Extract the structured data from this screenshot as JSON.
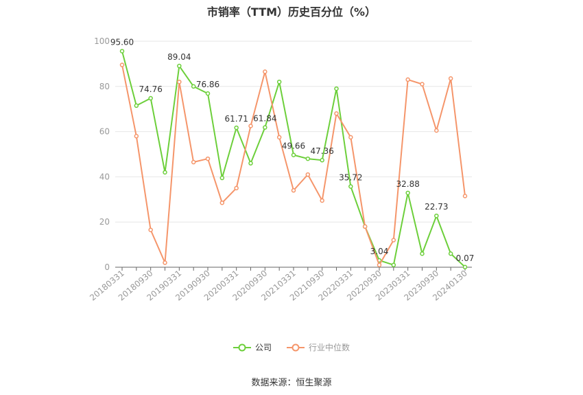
{
  "chart_data": {
    "type": "line",
    "title": "市销率（TTM）历史百分位（%）",
    "source_note": "数据来源：恒生聚源",
    "ylim": [
      0,
      100
    ],
    "yticks": [
      0,
      20,
      40,
      60,
      80,
      100
    ],
    "xtick_labels": [
      "20180331",
      "20180930",
      "20190331",
      "20190930",
      "20200331",
      "20200930",
      "20210331",
      "20210930",
      "20220331",
      "20220930",
      "20230331",
      "20230930",
      "20240130"
    ],
    "x": [
      "20180331",
      "20180630",
      "20180930",
      "20181231",
      "20190331",
      "20190630",
      "20190930",
      "20191231",
      "20200331",
      "20200630",
      "20200930",
      "20201231",
      "20210331",
      "20210630",
      "20210930",
      "20211231",
      "20220331",
      "20220630",
      "20220930",
      "20221231",
      "20230331",
      "20230630",
      "20230930",
      "20231231",
      "20240130"
    ],
    "series": [
      {
        "name": "公司",
        "color": "#6ccf3a",
        "values": [
          95.6,
          71.5,
          74.76,
          42.0,
          89.04,
          80.0,
          76.86,
          39.5,
          61.71,
          46.0,
          61.84,
          82.0,
          49.66,
          48.0,
          47.36,
          79.0,
          35.72,
          18.0,
          3.04,
          1.0,
          32.88,
          6.0,
          22.73,
          6.0,
          0.07
        ],
        "labeled_values": [
          "95.60",
          null,
          "74.76",
          null,
          "89.04",
          null,
          "76.86",
          null,
          "61.71",
          null,
          "61.84",
          null,
          "49.66",
          null,
          "47.36",
          null,
          "35.72",
          null,
          "3.04",
          null,
          "32.88",
          null,
          "22.73",
          null,
          "0.07"
        ]
      },
      {
        "name": "行业中位数",
        "color": "#f5956a",
        "values": [
          89.5,
          58.0,
          16.5,
          2.0,
          82.0,
          46.5,
          48.0,
          28.5,
          35.0,
          62.5,
          86.5,
          57.5,
          34.0,
          41.0,
          29.5,
          68.0,
          57.5,
          18.0,
          1.0,
          12.0,
          83.0,
          81.0,
          60.5,
          83.5,
          31.5
        ]
      }
    ],
    "grid": true,
    "legend_position": "bottom"
  }
}
